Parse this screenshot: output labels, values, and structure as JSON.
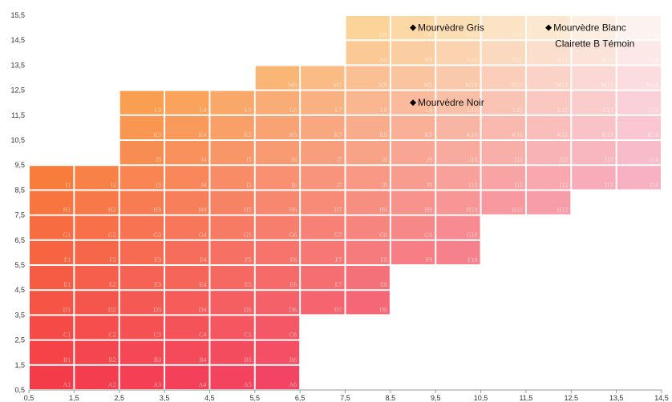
{
  "chart_data": {
    "type": "scatter",
    "xlim": [
      0.5,
      14.5
    ],
    "ylim": [
      0.5,
      15.5
    ],
    "x_ticks": [
      "0,5",
      "1,5",
      "2,5",
      "3,5",
      "4,5",
      "5,5",
      "6,5",
      "7,5",
      "8,5",
      "9,5",
      "10,5",
      "11,5",
      "12,5",
      "13,5",
      "14,5"
    ],
    "y_ticks": [
      "0,5",
      "1,5",
      "2,5",
      "3,5",
      "4,5",
      "5,5",
      "6,5",
      "7,5",
      "8,5",
      "9,5",
      "10,5",
      "11,5",
      "12,5",
      "13,5",
      "14,5",
      "15,5"
    ],
    "grid": false,
    "background_grid": {
      "columns": [
        {
          "x": 1,
          "y_from": 1,
          "y_to": 9
        },
        {
          "x": 2,
          "y_from": 1,
          "y_to": 9
        },
        {
          "x": 3,
          "y_from": 1,
          "y_to": 12
        },
        {
          "x": 4,
          "y_from": 1,
          "y_to": 12
        },
        {
          "x": 5,
          "y_from": 1,
          "y_to": 12
        },
        {
          "x": 6,
          "y_from": 1,
          "y_to": 13
        },
        {
          "x": 7,
          "y_from": 4,
          "y_to": 13
        },
        {
          "x": 8,
          "y_from": 4,
          "y_to": 15
        },
        {
          "x": 9,
          "y_from": 6,
          "y_to": 15
        },
        {
          "x": 10,
          "y_from": 6,
          "y_to": 15
        },
        {
          "x": 11,
          "y_from": 8,
          "y_to": 15
        },
        {
          "x": 12,
          "y_from": 8,
          "y_to": 15
        },
        {
          "x": 13,
          "y_from": 9,
          "y_to": 15
        },
        {
          "x": 14,
          "y_from": 9,
          "y_to": 15
        }
      ],
      "row_letters": [
        "A",
        "B",
        "C",
        "D",
        "E",
        "F",
        "G",
        "H",
        "I",
        "J",
        "K",
        "L",
        "M",
        "N",
        "O"
      ],
      "colors": {
        "bottom_left": "#f43b4a",
        "top_left": "#fbae33",
        "bottom_right": "#f2568a",
        "top_right": "#fcf3ee"
      }
    },
    "points": [
      {
        "label": "Mourvèdre Gris",
        "x": 9.0,
        "y": 15.0
      },
      {
        "label": "Mourvèdre Blanc",
        "x": 12.0,
        "y": 15.0
      },
      {
        "label": "Clairette B Témoin",
        "x": 12.0,
        "y": 15.0
      },
      {
        "label": "Mourvèdre Noir",
        "x": 9.0,
        "y": 12.0
      }
    ],
    "marker_color": "#000000"
  }
}
